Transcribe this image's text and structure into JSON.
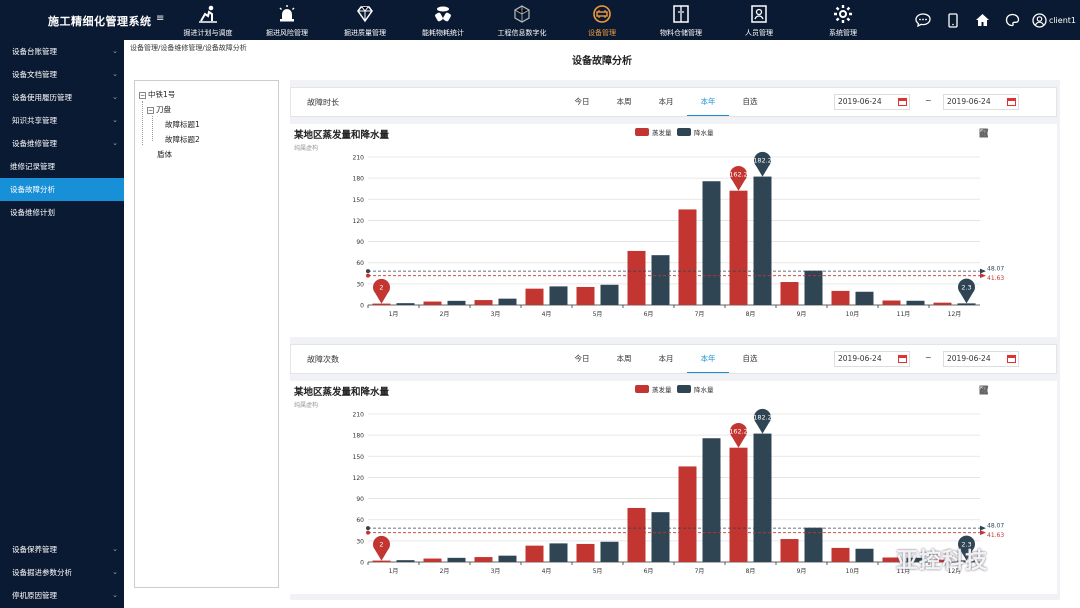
{
  "app": {
    "title": "施工精细化管理系统",
    "menu_icon": "≡"
  },
  "nav": [
    {
      "label": "掘进计划与调度",
      "icon": "worker-icon"
    },
    {
      "label": "掘进风险管理",
      "icon": "alarm-icon"
    },
    {
      "label": "掘进质量管理",
      "icon": "diamond-icon"
    },
    {
      "label": "能耗物耗统计",
      "icon": "materials-icon"
    },
    {
      "label": "工程信息数字化",
      "icon": "digital-icon"
    },
    {
      "label": "设备管理",
      "icon": "device-icon",
      "active": true
    },
    {
      "label": "物料仓储管理",
      "icon": "warehouse-icon"
    },
    {
      "label": "人员管理",
      "icon": "person-icon"
    },
    {
      "label": "系统管理",
      "icon": "gear-icon"
    }
  ],
  "user": {
    "name": "client1"
  },
  "sidebar": {
    "top": [
      {
        "label": "设备台账管理",
        "chevron": true
      },
      {
        "label": "设备文档管理",
        "chevron": true
      },
      {
        "label": "设备使用履历管理",
        "chevron": true
      },
      {
        "label": "知识共享管理",
        "chevron": true
      },
      {
        "label": "设备维修管理",
        "chevron": true
      },
      {
        "label": "维修记录管理",
        "sub": true
      },
      {
        "label": "设备故障分析",
        "sub": true,
        "active": true
      },
      {
        "label": "设备维修计划",
        "sub": true
      }
    ],
    "bottom": [
      {
        "label": "设备保养管理",
        "chevron": true
      },
      {
        "label": "设备掘进参数分析",
        "chevron": true
      },
      {
        "label": "停机原因管理",
        "chevron": true
      }
    ]
  },
  "breadcrumb": "设备管理/设备维修管理/设备故障分析",
  "page_title": "设备故障分析",
  "tree": {
    "root": "中铁1号",
    "child": "刀盘",
    "leaves": [
      "故障标题1",
      "故障标题2"
    ],
    "sibling": "盾体"
  },
  "filters": [
    {
      "label": "故障时长",
      "periods": [
        "今日",
        "本周",
        "本月",
        "本年",
        "自选"
      ],
      "active": "本年",
      "start": "2019-06-24",
      "end": "2019-06-24",
      "tilde": "~"
    },
    {
      "label": "故障次数",
      "periods": [
        "今日",
        "本周",
        "本月",
        "本年",
        "自选"
      ],
      "active": "本年",
      "start": "2019-06-24",
      "end": "2019-06-24",
      "tilde": "~"
    }
  ],
  "colors": {
    "evap": "#c23531",
    "rain": "#2f4554",
    "accent": "#1890d8",
    "nav_bg": "#0b1a33"
  },
  "chart_data": [
    {
      "type": "bar",
      "title": "某地区蒸发量和降水量",
      "subtitle": "纯属虚构",
      "categories": [
        "1月",
        "2月",
        "3月",
        "4月",
        "5月",
        "6月",
        "7月",
        "8月",
        "9月",
        "10月",
        "11月",
        "12月"
      ],
      "series": [
        {
          "name": "蒸发量",
          "values": [
            2.0,
            4.9,
            7.0,
            23.2,
            25.6,
            76.7,
            135.6,
            162.2,
            32.6,
            20.0,
            6.4,
            3.3
          ],
          "max_label": "162.2",
          "min_label": "2",
          "average_label": "41.63"
        },
        {
          "name": "降水量",
          "values": [
            2.6,
            5.9,
            9.0,
            26.4,
            28.7,
            70.7,
            175.6,
            182.2,
            48.7,
            18.8,
            6.0,
            2.3
          ],
          "max_label": "182.2",
          "min_label": "2.3",
          "average_label": "48.07"
        }
      ],
      "ylim": [
        0,
        210
      ],
      "yticks": [
        0,
        30,
        60,
        90,
        120,
        150,
        180,
        210
      ],
      "legend": "top-center",
      "grid": true
    },
    {
      "type": "bar",
      "title": "某地区蒸发量和降水量",
      "subtitle": "纯属虚构",
      "categories": [
        "1月",
        "2月",
        "3月",
        "4月",
        "5月",
        "6月",
        "7月",
        "8月",
        "9月",
        "10月",
        "11月",
        "12月"
      ],
      "series": [
        {
          "name": "蒸发量",
          "values": [
            2.0,
            4.9,
            7.0,
            23.2,
            25.6,
            76.7,
            135.6,
            162.2,
            32.6,
            20.0,
            6.4,
            3.3
          ],
          "max_label": "162.2",
          "min_label": "2",
          "average_label": "41.63"
        },
        {
          "name": "降水量",
          "values": [
            2.6,
            5.9,
            9.0,
            26.4,
            28.7,
            70.7,
            175.6,
            182.2,
            48.7,
            18.8,
            6.0,
            2.3
          ],
          "max_label": "182.2",
          "min_label": "2.3",
          "average_label": "48.07"
        }
      ],
      "ylim": [
        0,
        210
      ],
      "yticks": [
        0,
        30,
        60,
        90,
        120,
        150,
        180,
        210
      ],
      "legend": "top-center",
      "grid": true
    }
  ],
  "watermark": "亚控科技"
}
